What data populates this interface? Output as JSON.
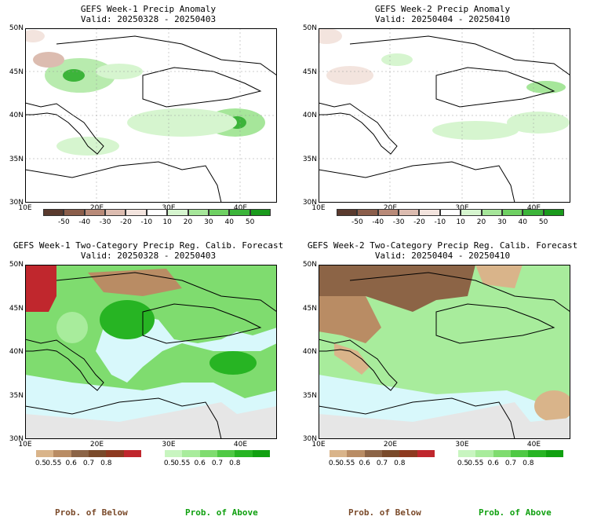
{
  "panels": [
    {
      "title": "GEFS Week-1 Precip Anomaly",
      "valid": "Valid: 20250328 - 20250403"
    },
    {
      "title": "GEFS Week-2 Precip Anomaly",
      "valid": "Valid: 20250404 - 20250410"
    },
    {
      "title": "GEFS Week-1 Two-Category Precip Reg. Calib. Forecast",
      "valid": "Valid: 20250328 - 20250403"
    },
    {
      "title": "GEFS Week-2 Two-Category Precip Reg. Calib. Forecast",
      "valid": "Valid: 20250404 - 20250410"
    }
  ],
  "lat_labels": [
    "50N",
    "45N",
    "40N",
    "35N",
    "30N"
  ],
  "lon_labels": [
    "10E",
    "20E",
    "30E",
    "40E"
  ],
  "anomaly_colorbar": {
    "labels": [
      "-50",
      "-40",
      "-30",
      "-20",
      "-10",
      "10",
      "20",
      "30",
      "40",
      "50"
    ],
    "colors": [
      "#5a3a2e",
      "#8b5e4b",
      "#b88a78",
      "#dcbcb0",
      "#f3e4de",
      "#ffffff",
      "#d6f5cf",
      "#a6e69a",
      "#6fd063",
      "#3cb43a",
      "#1a9a1c"
    ]
  },
  "below_colorbar": {
    "labels": [
      "0.5",
      "0.55",
      "0.6",
      "0.7",
      "0.8"
    ],
    "colors": [
      "#d9b48a",
      "#b98c64",
      "#8c6446",
      "#7a4a2a",
      "#8e3a20",
      "#c0272d"
    ]
  },
  "above_colorbar": {
    "labels": [
      "0.5",
      "0.55",
      "0.6",
      "0.7",
      "0.8"
    ],
    "colors": [
      "#c8f5c0",
      "#a8ec9c",
      "#7fdc6f",
      "#4fc944",
      "#27b423",
      "#10a010"
    ]
  },
  "footer": {
    "below": "Prob. of Below",
    "above": "Prob. of Above",
    "below_color": "#7a4a2a",
    "above_color": "#10a010"
  },
  "colors": {
    "sea_light_blue": "#d8f8fb",
    "no_data_gray": "#e6e6e6"
  }
}
